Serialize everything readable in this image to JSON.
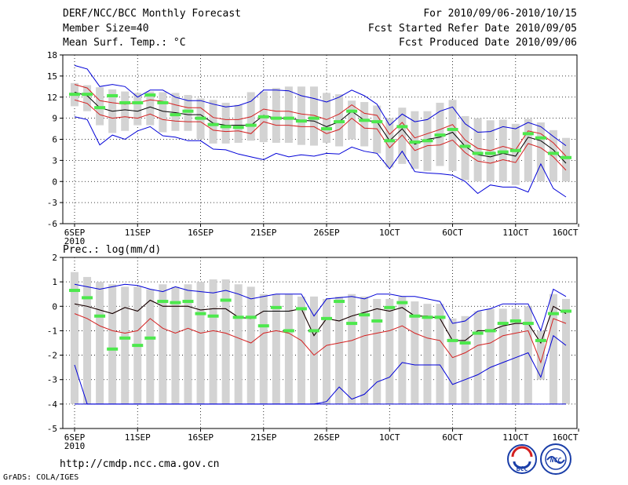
{
  "header": {
    "title": "DERF/NCC/BCC Monthly Forecast",
    "member_size": "Member Size=40",
    "variable": "Mean Surf. Temp.: °C",
    "period": "For 2010/09/06-2010/10/15",
    "refer_date": "Fcst Started Refer Date 2010/09/05",
    "produced_date": "Fcst Produced Date 2010/09/06"
  },
  "footer": {
    "url": "http://cmdp.ncc.cma.gov.cn",
    "credit": "GrADS: COLA/IGES",
    "logo_bcc": "BCC",
    "logo_ncc": "NCC"
  },
  "colors": {
    "box": "#d3d3d3",
    "median": "#4de84d",
    "mean": "#000000",
    "spread_inner": "#d42020",
    "spread_outer": "#0000d8",
    "floor_line": "#0000d8"
  },
  "chart_data": [
    {
      "type": "box_ensemble",
      "label": "",
      "year_label": "2010",
      "ylim": [
        -6,
        18
      ],
      "yticks": [
        -6,
        -3,
        0,
        3,
        6,
        9,
        12,
        15,
        18
      ],
      "xlim": [
        0,
        39
      ],
      "xticks": [
        {
          "day": 0,
          "label": "6SEP"
        },
        {
          "day": 5,
          "label": "11SEP"
        },
        {
          "day": 10,
          "label": "16SEP"
        },
        {
          "day": 15,
          "label": "21SEP"
        },
        {
          "day": 20,
          "label": "26SEP"
        },
        {
          "day": 25,
          "label": "1OCT"
        },
        {
          "day": 30,
          "label": "6OCT"
        },
        {
          "day": 35,
          "label": "11OCT"
        },
        {
          "day": 40,
          "label": "16OCT"
        }
      ],
      "mean": [
        12.7,
        12.2,
        10.5,
        10.0,
        10.2,
        10.0,
        10.6,
        10.0,
        9.8,
        9.5,
        9.5,
        8.3,
        8.0,
        8.0,
        8.0,
        9.4,
        9.0,
        9.0,
        8.7,
        8.6,
        7.8,
        8.5,
        10.0,
        8.7,
        8.5,
        5.8,
        7.5,
        5.3,
        6.0,
        6.3,
        7.0,
        5.0,
        3.8,
        3.5,
        4.0,
        3.6,
        6.3,
        5.8,
        4.5,
        2.6
      ],
      "median": [
        12.4,
        12.4,
        10.5,
        12.2,
        11.2,
        11.2,
        12.3,
        11.2,
        9.5,
        10.0,
        9.0,
        8.1,
        7.8,
        7.7,
        8.0,
        9.2,
        9.0,
        9.0,
        8.6,
        9.0,
        7.5,
        8.5,
        10.0,
        8.7,
        8.5,
        5.8,
        7.8,
        5.6,
        5.8,
        6.6,
        7.4,
        5.0,
        4.0,
        4.0,
        4.2,
        4.4,
        6.8,
        6.2,
        4.0,
        3.4
      ],
      "box_high": [
        14.0,
        13.7,
        13.4,
        13.1,
        12.8,
        12.6,
        12.8,
        12.7,
        12.6,
        12.3,
        11.8,
        11.6,
        11.2,
        10.9,
        12.7,
        12.8,
        13.3,
        13.5,
        13.5,
        13.5,
        12.6,
        12.4,
        11.5,
        11.3,
        10.8,
        9.0,
        10.5,
        10.0,
        10.0,
        11.2,
        11.6,
        9.3,
        9.0,
        8.7,
        8.8,
        8.2,
        8.9,
        8.4,
        7.3,
        6.2
      ],
      "box_low": [
        10.7,
        10.0,
        8.0,
        6.9,
        7.2,
        8.0,
        8.0,
        7.0,
        7.2,
        7.2,
        6.0,
        5.4,
        5.4,
        5.5,
        5.8,
        5.6,
        5.5,
        5.5,
        5.2,
        5.1,
        5.5,
        5.0,
        6.0,
        5.0,
        4.0,
        2.0,
        2.5,
        1.8,
        1.5,
        2.2,
        1.5,
        0.2,
        0.0,
        0.0,
        0.0,
        -0.5,
        0.0,
        0.0,
        0.0,
        0.0
      ],
      "inner_upper": [
        13.8,
        13.3,
        11.5,
        11.2,
        11.0,
        11.2,
        11.6,
        11.4,
        10.9,
        10.5,
        10.5,
        9.1,
        8.8,
        8.8,
        9.2,
        10.3,
        10.0,
        10.0,
        9.6,
        9.4,
        8.8,
        9.6,
        10.9,
        9.7,
        9.4,
        6.7,
        8.4,
        6.2,
        6.8,
        7.4,
        8.1,
        5.9,
        4.7,
        4.4,
        5.0,
        4.5,
        7.2,
        6.8,
        5.5,
        3.6
      ],
      "inner_lower": [
        11.6,
        11.1,
        9.5,
        9.0,
        9.2,
        9.0,
        9.6,
        8.8,
        8.6,
        8.5,
        8.5,
        7.3,
        7.1,
        7.2,
        6.8,
        8.5,
        8.0,
        8.0,
        7.8,
        7.8,
        6.8,
        7.4,
        9.0,
        7.6,
        7.5,
        4.8,
        6.6,
        4.4,
        5.1,
        5.2,
        5.9,
        4.1,
        2.9,
        2.6,
        3.1,
        2.7,
        5.4,
        4.8,
        3.5,
        1.6
      ],
      "outer_upper": [
        16.5,
        16.0,
        13.5,
        13.8,
        13.5,
        12.0,
        13.0,
        13.0,
        12.0,
        11.5,
        11.5,
        11.0,
        10.6,
        10.8,
        11.4,
        13.0,
        13.0,
        12.9,
        12.2,
        11.8,
        11.3,
        12.0,
        13.0,
        12.2,
        11.0,
        8.0,
        9.6,
        8.5,
        8.8,
        10.0,
        10.6,
        8.2,
        7.0,
        7.1,
        7.8,
        7.5,
        8.4,
        7.8,
        6.4,
        5.1
      ],
      "outer_lower": [
        9.2,
        8.8,
        5.2,
        6.6,
        6.0,
        7.2,
        7.8,
        6.5,
        6.3,
        5.8,
        5.8,
        4.6,
        4.5,
        3.9,
        3.5,
        3.1,
        4.0,
        3.5,
        3.8,
        3.6,
        4.0,
        3.9,
        4.9,
        4.3,
        4.0,
        1.8,
        4.3,
        1.4,
        1.2,
        1.1,
        0.9,
        0.0,
        -1.7,
        -0.5,
        -0.8,
        -0.8,
        -1.5,
        2.5,
        -1.0,
        -2.2
      ]
    },
    {
      "type": "box_ensemble",
      "label": "Prec.: log(mm/d)",
      "year_label": "2010",
      "ylim": [
        -5,
        2
      ],
      "yticks": [
        -5,
        -4,
        -3,
        -2,
        -1,
        0,
        1,
        2
      ],
      "xlim": [
        0,
        39
      ],
      "floor_value": -4,
      "xticks": [
        {
          "day": 0,
          "label": "6SEP"
        },
        {
          "day": 5,
          "label": "11SEP"
        },
        {
          "day": 10,
          "label": "16SEP"
        },
        {
          "day": 15,
          "label": "21SEP"
        },
        {
          "day": 20,
          "label": "26SEP"
        },
        {
          "day": 25,
          "label": "1OCT"
        },
        {
          "day": 30,
          "label": "6OCT"
        },
        {
          "day": 35,
          "label": "11OCT"
        },
        {
          "day": 40,
          "label": "16OCT"
        }
      ],
      "mean": [
        0.1,
        0.0,
        -0.15,
        -0.3,
        -0.05,
        -0.2,
        0.25,
        0.0,
        0.0,
        0.0,
        -0.15,
        -0.1,
        -0.1,
        -0.45,
        -0.5,
        -0.2,
        -0.2,
        -0.2,
        -0.1,
        -1.2,
        -0.5,
        -0.6,
        -0.4,
        -0.25,
        -0.1,
        -0.2,
        -0.05,
        -0.4,
        -0.4,
        -0.5,
        -1.4,
        -1.4,
        -1.0,
        -1.0,
        -0.8,
        -0.7,
        -0.7,
        -1.5,
        0.0,
        -0.3
      ],
      "median": [
        0.65,
        0.35,
        -0.4,
        -1.75,
        -1.3,
        -1.6,
        -1.3,
        0.2,
        0.15,
        0.2,
        -0.3,
        -0.4,
        0.25,
        -0.45,
        -0.45,
        -0.8,
        -0.05,
        -1.0,
        -0.1,
        -1.0,
        -0.5,
        0.2,
        -0.7,
        -0.35,
        -0.6,
        -0.05,
        0.15,
        -0.4,
        -0.45,
        -0.45,
        -1.4,
        -1.5,
        -1.1,
        -1.0,
        -0.7,
        -0.6,
        -0.7,
        -1.4,
        -0.3,
        -0.2
      ],
      "box_high": [
        1.4,
        1.2,
        1.0,
        0.9,
        0.8,
        0.8,
        0.7,
        0.9,
        0.8,
        0.9,
        1.0,
        1.1,
        1.1,
        0.9,
        0.8,
        0.5,
        0.5,
        0.5,
        0.4,
        0.4,
        0.3,
        0.4,
        0.5,
        0.4,
        0.3,
        0.3,
        0.4,
        0.2,
        0.1,
        0.1,
        -0.5,
        -0.4,
        -0.2,
        -0.1,
        -0.1,
        -0.1,
        0.0,
        -1.0,
        0.5,
        0.3
      ],
      "box_low": [
        -4.0,
        -4.0,
        -4.0,
        -4.0,
        -4.0,
        -4.0,
        -4.0,
        -4.0,
        -4.0,
        -4.0,
        -4.0,
        -4.0,
        -4.0,
        -4.0,
        -4.0,
        -4.0,
        -4.0,
        -4.0,
        -4.0,
        -4.0,
        -4.0,
        -4.0,
        -4.0,
        -4.0,
        -4.0,
        -4.0,
        -4.0,
        -4.0,
        -4.0,
        -4.0,
        -4.0,
        -4.0,
        -4.0,
        -4.0,
        -4.0,
        -4.0,
        -4.0,
        -3.0,
        -4.0,
        -4.0
      ],
      "inner_upper": [
        0.1,
        0.0,
        -0.15,
        -0.3,
        -0.05,
        -0.2,
        0.25,
        0.0,
        0.0,
        0.0,
        -0.15,
        -0.1,
        -0.1,
        -0.45,
        -0.5,
        -0.2,
        -0.2,
        -0.2,
        -0.1,
        -1.2,
        -0.5,
        -0.6,
        -0.4,
        -0.25,
        -0.1,
        -0.2,
        -0.05,
        -0.4,
        -0.4,
        -0.5,
        -1.4,
        -1.4,
        -1.0,
        -1.0,
        -0.8,
        -0.7,
        -0.7,
        -1.5,
        0.0,
        -0.3
      ],
      "inner_lower": [
        -0.3,
        -0.5,
        -0.8,
        -1.0,
        -1.1,
        -1.0,
        -0.5,
        -0.9,
        -1.1,
        -0.9,
        -1.1,
        -1.0,
        -1.1,
        -1.3,
        -1.5,
        -1.1,
        -1.0,
        -1.1,
        -1.4,
        -2.0,
        -1.6,
        -1.5,
        -1.4,
        -1.2,
        -1.1,
        -1.0,
        -0.8,
        -1.1,
        -1.3,
        -1.4,
        -2.1,
        -1.9,
        -1.6,
        -1.5,
        -1.2,
        -1.1,
        -1.0,
        -2.3,
        -0.5,
        -0.7
      ],
      "outer_upper": [
        0.9,
        0.8,
        0.7,
        0.8,
        0.9,
        0.85,
        0.7,
        0.6,
        0.8,
        0.65,
        0.6,
        0.55,
        0.65,
        0.5,
        0.3,
        0.4,
        0.5,
        0.5,
        0.5,
        -0.4,
        0.3,
        0.35,
        0.4,
        0.3,
        0.5,
        0.5,
        0.4,
        0.4,
        0.3,
        0.2,
        -0.7,
        -0.6,
        -0.2,
        -0.1,
        0.1,
        0.1,
        0.1,
        -1.0,
        0.7,
        0.4
      ],
      "outer_lower": [
        -2.4,
        -4.0,
        -4.0,
        -4.0,
        -4.0,
        -4.0,
        -4.0,
        -4.0,
        -4.0,
        -4.0,
        -4.0,
        -4.0,
        -4.0,
        -4.0,
        -4.0,
        -4.0,
        -4.0,
        -4.0,
        -4.0,
        -4.0,
        -3.9,
        -3.3,
        -3.8,
        -3.6,
        -3.1,
        -2.9,
        -2.3,
        -2.4,
        -2.4,
        -2.4,
        -3.2,
        -3.0,
        -2.8,
        -2.5,
        -2.3,
        -2.1,
        -1.9,
        -2.9,
        -1.2,
        -1.6
      ]
    }
  ]
}
